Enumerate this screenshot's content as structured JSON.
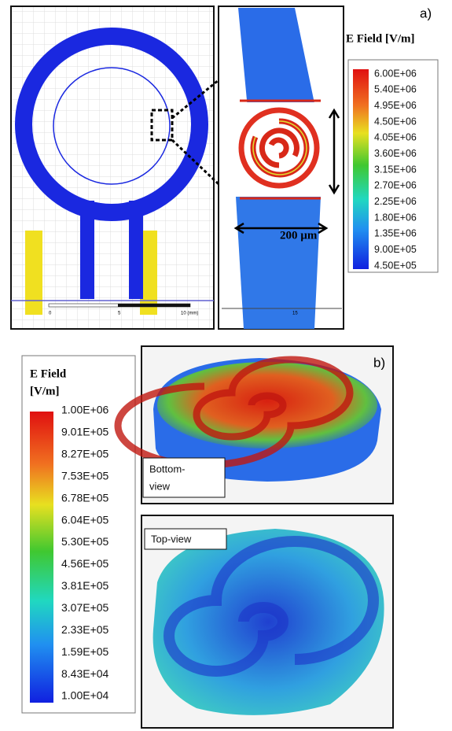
{
  "panel_a": {
    "label": "a)",
    "colorbar_title": "E Field [V/m]",
    "colorbar_ticks": [
      "6.00E+06",
      "5.40E+06",
      "4.95E+06",
      "4.50E+06",
      "4.05E+06",
      "3.60E+06",
      "3.15E+06",
      "2.70E+06",
      "2.25E+06",
      "1.80E+06",
      "1.35E+06",
      "9.00E+05",
      "4.50E+05"
    ],
    "scale_bar": "200 µm",
    "ruler_labels": [
      "0",
      "5",
      "10 (mm)"
    ],
    "zoom_ruler_label": "15"
  },
  "panel_b": {
    "label": "b)",
    "colorbar_title": [
      "E Field",
      "[V/m]"
    ],
    "colorbar_ticks": [
      "1.00E+06",
      "9.01E+05",
      "8.27E+05",
      "7.53E+05",
      "6.78E+05",
      "6.04E+05",
      "5.30E+05",
      "4.56E+05",
      "3.81E+05",
      "3.07E+05",
      "2.33E+05",
      "1.59E+05",
      "8.43E+04",
      "1.00E+04"
    ],
    "views": [
      [
        "Bottom-",
        "view"
      ],
      [
        "Top-view"
      ]
    ]
  }
}
